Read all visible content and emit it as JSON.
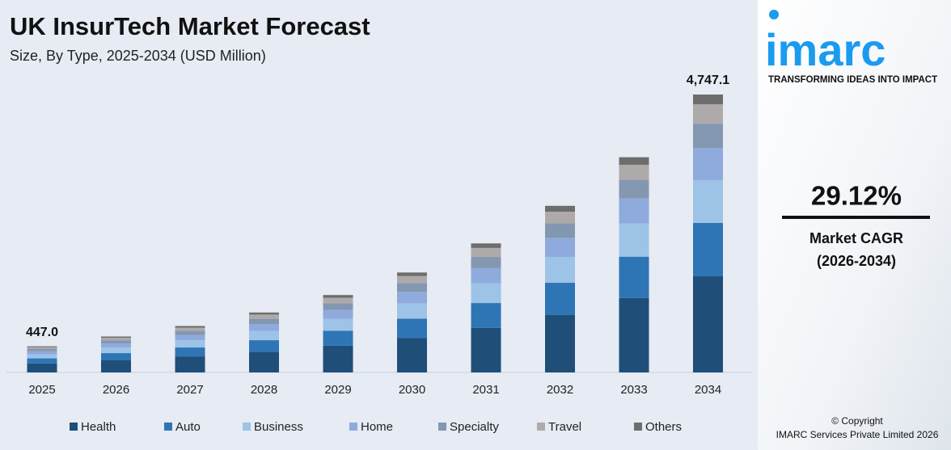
{
  "chart_data": {
    "type": "stacked_bar",
    "title": "UK InsurTech Market Forecast",
    "subtitle": "Size, By Type, 2025-2034 (USD Million)",
    "categories": [
      "2025",
      "2026",
      "2027",
      "2028",
      "2029",
      "2030",
      "2031",
      "2032",
      "2033",
      "2034"
    ],
    "series": [
      {
        "name": "Health",
        "color": "#1f4e79",
        "values": [
          154.7,
          212.4,
          274.4,
          354.3,
          457.4,
          590.6,
          762.6,
          984.7,
          1271.9,
          1642.5
        ]
      },
      {
        "name": "Auto",
        "color": "#2e75b6",
        "values": [
          85.8,
          117.9,
          152.3,
          196.6,
          253.8,
          327.7,
          423.2,
          546.4,
          705.8,
          911.4
        ]
      },
      {
        "name": "Business",
        "color": "#9dc3e6",
        "values": [
          68.8,
          94.6,
          122.1,
          157.7,
          203.6,
          262.9,
          339.4,
          438.3,
          566.1,
          731.1
        ]
      },
      {
        "name": "Home",
        "color": "#8faadc",
        "values": [
          51.9,
          71.2,
          92.0,
          118.8,
          153.4,
          198.0,
          255.7,
          330.1,
          426.4,
          550.7
        ]
      },
      {
        "name": "Specialty",
        "color": "#8497b0",
        "values": [
          38.9,
          53.4,
          69.0,
          89.1,
          115.0,
          148.5,
          191.7,
          247.6,
          319.8,
          413.0
        ]
      },
      {
        "name": "Travel",
        "color": "#aeaaaa",
        "values": [
          31.3,
          43.0,
          55.5,
          71.7,
          92.5,
          119.5,
          154.3,
          199.2,
          257.3,
          332.3
        ]
      },
      {
        "name": "Others",
        "color": "#6d6d6d",
        "values": [
          15.6,
          21.5,
          27.8,
          35.8,
          46.3,
          59.7,
          77.1,
          99.6,
          128.7,
          166.1
        ]
      }
    ],
    "totals": [
      447.0,
      null,
      null,
      null,
      null,
      null,
      null,
      null,
      null,
      4747.1
    ],
    "total_labels": [
      "447.0",
      null,
      null,
      null,
      null,
      null,
      null,
      null,
      null,
      "4,747.1"
    ],
    "legend": "bottom"
  },
  "sidebar": {
    "logo": "imarc",
    "tagline": "TRANSFORMING IDEAS INTO IMPACT",
    "cagr": "29.12%",
    "cagr_label": "Market CAGR",
    "cagr_period": "(2026-2034)",
    "copyright": "© Copyright",
    "company": "IMARC Services Private Limited 2026"
  }
}
